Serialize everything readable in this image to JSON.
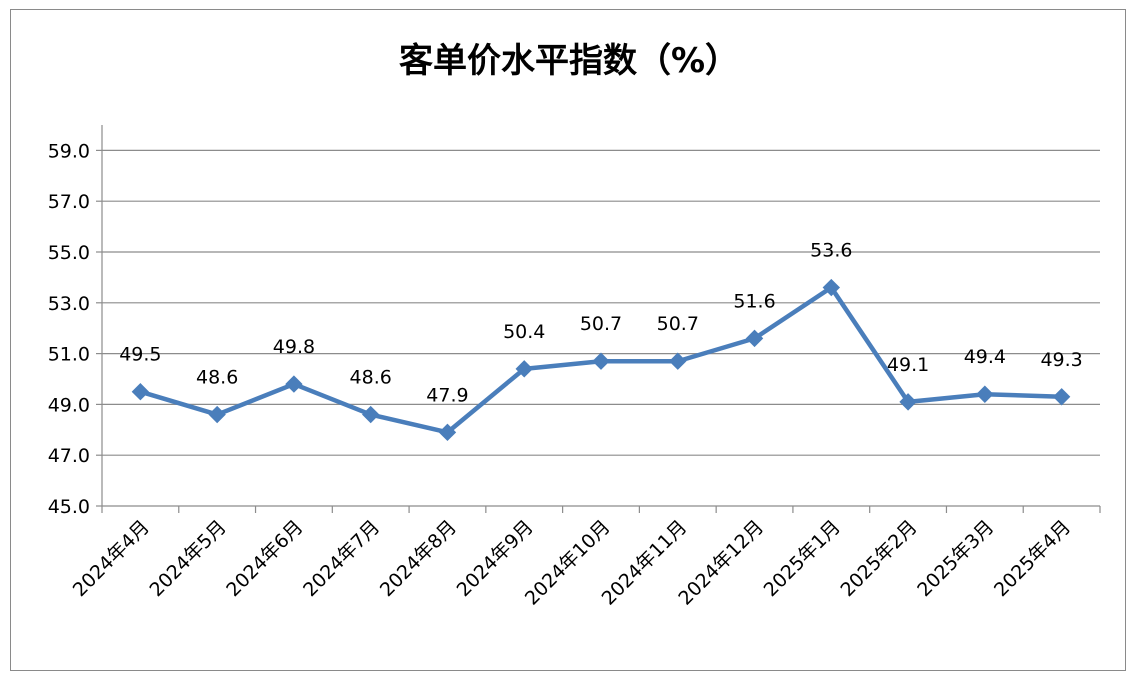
{
  "chart_data": {
    "type": "line",
    "title": "客单价水平指数（%）",
    "categories": [
      "2024年4月",
      "2024年5月",
      "2024年6月",
      "2024年7月",
      "2024年8月",
      "2024年9月",
      "2024年10月",
      "2024年11月",
      "2024年12月",
      "2025年1月",
      "2025年2月",
      "2025年3月",
      "2025年4月"
    ],
    "series": [
      {
        "values": [
          49.5,
          48.6,
          49.8,
          48.6,
          47.9,
          50.4,
          50.7,
          50.7,
          51.6,
          53.6,
          49.1,
          49.4,
          49.3
        ]
      }
    ],
    "data_labels": [
      "49.5",
      "48.6",
      "49.8",
      "48.6",
      "47.9",
      "50.4",
      "50.7",
      "50.7",
      "51.6",
      "53.6",
      "49.1",
      "49.4",
      "49.3"
    ],
    "y_ticks": [
      "45.0",
      "47.0",
      "49.0",
      "51.0",
      "53.0",
      "55.0",
      "57.0",
      "59.0"
    ],
    "ylim": [
      45,
      60
    ],
    "grid": true,
    "legend": "none",
    "colors": {
      "line": "#4a7ebb",
      "grid": "#8c8c8c",
      "axis": "#8c8c8c"
    }
  }
}
